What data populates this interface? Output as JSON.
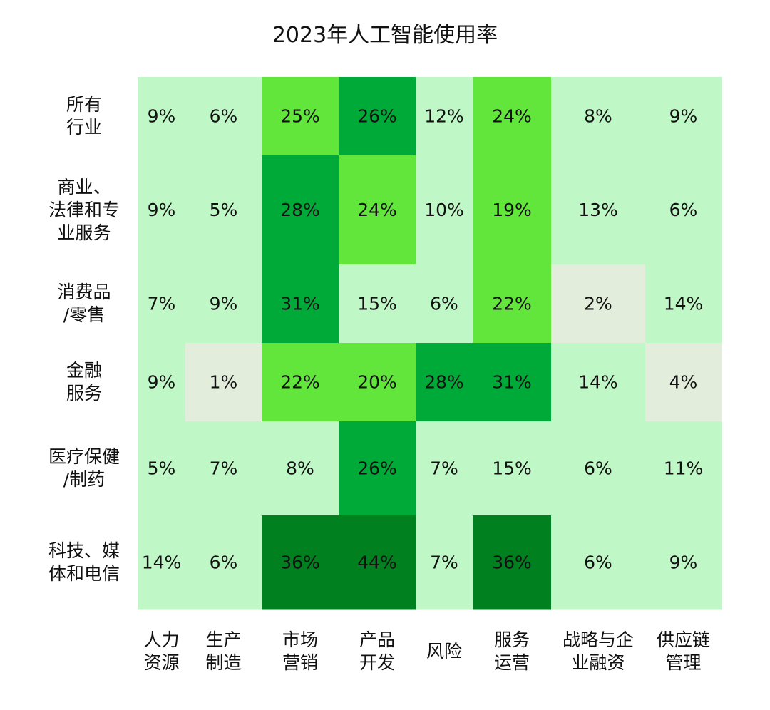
{
  "chart_data": {
    "type": "heatmap",
    "title": "2023年人工智能使用率",
    "rows": [
      [
        "所有",
        "行业"
      ],
      [
        "商业、",
        "法律和专",
        "业服务"
      ],
      [
        "消费品",
        "/零售"
      ],
      [
        "金融",
        "服务"
      ],
      [
        "医疗保健",
        "/制药"
      ],
      [
        "科技、媒",
        "体和电信"
      ]
    ],
    "columns": [
      [
        "人力",
        "资源"
      ],
      [
        "生产",
        "制造"
      ],
      [
        "市场",
        "营销"
      ],
      [
        "产品",
        "开发"
      ],
      [
        "风险"
      ],
      [
        "服务",
        "运营"
      ],
      [
        "战略与企",
        "业融资"
      ],
      [
        "供应链",
        "管理"
      ]
    ],
    "values": [
      [
        9,
        6,
        25,
        26,
        12,
        24,
        8,
        9
      ],
      [
        9,
        5,
        28,
        24,
        10,
        19,
        13,
        6
      ],
      [
        7,
        9,
        31,
        15,
        6,
        22,
        2,
        14
      ],
      [
        9,
        1,
        22,
        20,
        28,
        31,
        14,
        4
      ],
      [
        5,
        7,
        8,
        26,
        7,
        15,
        6,
        11
      ],
      [
        14,
        6,
        36,
        44,
        7,
        36,
        6,
        9
      ]
    ],
    "value_suffix": "%",
    "color_scale": [
      {
        "max": 4,
        "color": "#e2eedb"
      },
      {
        "max": 15,
        "color": "#c0f7c6"
      },
      {
        "max": 25,
        "color": "#62e63c"
      },
      {
        "max": 31,
        "color": "#00aa38"
      },
      {
        "max": 100,
        "color": "#00801f"
      }
    ]
  }
}
